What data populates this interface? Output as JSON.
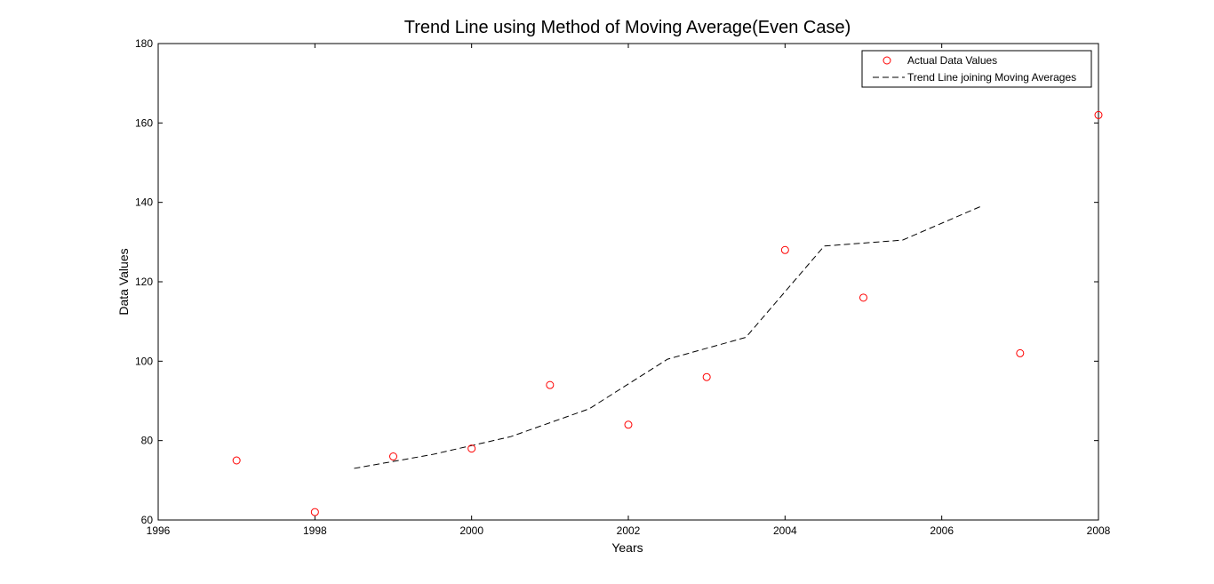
{
  "chart_data": {
    "type": "scatter",
    "title": "Trend Line using Method of Moving Average(Even Case)",
    "xlabel": "Years",
    "ylabel": "Data Values",
    "xlim": [
      1996,
      2008
    ],
    "ylim": [
      60,
      180
    ],
    "xticks": [
      "1996",
      "1998",
      "2000",
      "2002",
      "2004",
      "2006",
      "2008"
    ],
    "yticks": [
      "60",
      "80",
      "100",
      "120",
      "140",
      "160",
      "180"
    ],
    "grid": false,
    "legend_position": "top-right",
    "series": [
      {
        "name": "Actual Data Values",
        "kind": "scatter",
        "marker": "circle",
        "color": "#ff0000",
        "x": [
          1997,
          1998,
          1999,
          2000,
          2001,
          2002,
          2003,
          2004,
          2005,
          2007,
          2008
        ],
        "y": [
          75,
          62,
          76,
          78,
          94,
          84,
          96,
          128,
          116,
          102,
          162
        ]
      },
      {
        "name": "Trend Line joining Moving Averages",
        "kind": "line",
        "line_style": "dashed",
        "color": "#000000",
        "x": [
          1998.5,
          1999.5,
          2000.5,
          2001.5,
          2002.5,
          2003.5,
          2004.5,
          2005.5,
          2006.5
        ],
        "y": [
          73,
          76.5,
          81,
          88,
          100.5,
          106,
          129,
          130.5,
          139
        ]
      }
    ]
  }
}
